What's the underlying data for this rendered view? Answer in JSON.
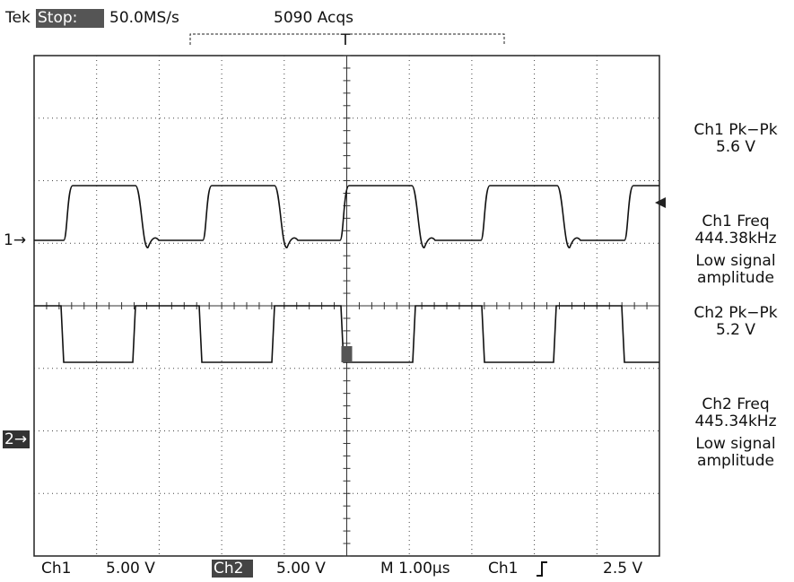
{
  "header": {
    "brand": "Tek",
    "state": "Stop:",
    "sample_rate": "50.0MS/s",
    "acquisitions": "5090 Acqs",
    "trigger_marker": "T"
  },
  "markers": {
    "ch1": "1→",
    "ch2": "2→"
  },
  "measurements": [
    {
      "label": "Ch1 Pk−Pk",
      "value": "5.6 V"
    },
    {
      "label": "Ch1 Freq",
      "value": "444.38kHz",
      "note": [
        "Low signal",
        "amplitude"
      ]
    },
    {
      "label": "Ch2 Pk−Pk",
      "value": "5.2 V"
    },
    {
      "label": "Ch2 Freq",
      "value": "445.34kHz",
      "note": [
        "Low signal",
        "amplitude"
      ]
    }
  ],
  "footer": {
    "ch1_label": "Ch1",
    "ch1_scale": "5.00 V",
    "ch2_label": "Ch2",
    "ch2_scale": "5.00 V",
    "timebase": "M 1.00µs",
    "trigger_source": "Ch1",
    "trigger_level": "2.5 V"
  }
}
